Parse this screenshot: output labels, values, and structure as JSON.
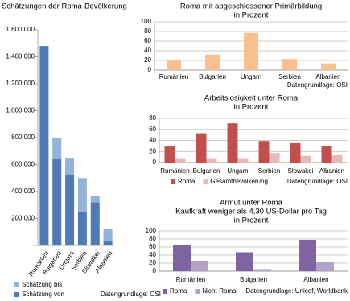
{
  "chart_data": [
    {
      "type": "bar",
      "stacked": true,
      "grid": false,
      "title": "Schätzungen der Roma-Bevölkerung",
      "categories": [
        "Rumänien",
        "Bulgarien",
        "Ungarn",
        "Serbien",
        "Slowakei",
        "Albanien"
      ],
      "series": [
        {
          "name": "Schätzung von",
          "color": "#4f7ab4",
          "values": [
            1480000,
            640000,
            520000,
            250000,
            320000,
            30000
          ]
        },
        {
          "name": "Schätzung bis",
          "color": "#95b3d7",
          "values": [
            0,
            160000,
            130000,
            250000,
            50000,
            90000
          ]
        }
      ],
      "ylim": [
        0,
        1600000
      ],
      "yticks": [
        {
          "value": 0,
          "label": "-"
        },
        {
          "value": 200000,
          "label": "200.000"
        },
        {
          "value": 400000,
          "label": "400.000"
        },
        {
          "value": 600000,
          "label": "600.000"
        },
        {
          "value": 800000,
          "label": "800.000"
        },
        {
          "value": 1000000,
          "label": "1.000.000"
        },
        {
          "value": 1200000,
          "label": "1.200.000"
        },
        {
          "value": 1400000,
          "label": "1.400.000"
        },
        {
          "value": 1600000,
          "label": "1.600.000"
        }
      ],
      "source": "Datengrundlage: OSI"
    },
    {
      "type": "bar",
      "grid": true,
      "title": "Roma mit abgeschlossener Primärbildung",
      "subtitle": [
        "in Prozent"
      ],
      "categories": [
        "Rumänien",
        "Bulgarien",
        "Ungarn",
        "Serbien",
        "Albanien"
      ],
      "series": [
        {
          "color": "#fac090",
          "values": [
            20,
            32,
            77,
            23,
            14
          ]
        }
      ],
      "ylim": [
        0,
        100
      ],
      "yticks": [
        0,
        20,
        40,
        60,
        80,
        100
      ],
      "source": "Datengrundlage: OSI"
    },
    {
      "type": "bar",
      "grid": true,
      "title": "Arbeitslosigkeit unter Roma",
      "subtitle": [
        "in Prozent"
      ],
      "categories": [
        "Rumänien",
        "Bulgarien",
        "Ungarn",
        "Serbien",
        "Slowakei",
        "Albanien"
      ],
      "series": [
        {
          "name": "Roma",
          "color": "#c0504d",
          "values": [
            29,
            53,
            71,
            39,
            35,
            30
          ]
        },
        {
          "name": "Gesamtbevölkerung",
          "color": "#e6b9b8",
          "values": [
            8,
            8,
            8,
            17,
            12,
            14
          ]
        }
      ],
      "ylim": [
        0,
        80
      ],
      "yticks": [
        0,
        20,
        40,
        60,
        80
      ],
      "source": "Datengrundlage: OSI"
    },
    {
      "type": "bar",
      "grid": true,
      "title": "Armut unter Roma",
      "subtitle": [
        "Kaufkraft weniger als 4,30 US-Dollar  pro Tag",
        "in Prozent"
      ],
      "categories": [
        "Rumänien",
        "Bulgarien",
        "Albanien"
      ],
      "series": [
        {
          "name": "Roma",
          "color": "#8064a2",
          "values": [
            66,
            47,
            78
          ]
        },
        {
          "name": "Nicht-Roma",
          "color": "#b3a2c7",
          "values": [
            26,
            5,
            24
          ]
        }
      ],
      "ylim": [
        0,
        100
      ],
      "yticks": [
        0,
        20,
        40,
        60,
        80,
        100
      ],
      "source": "Datengrundlage: Unicef, Worldbank"
    }
  ]
}
